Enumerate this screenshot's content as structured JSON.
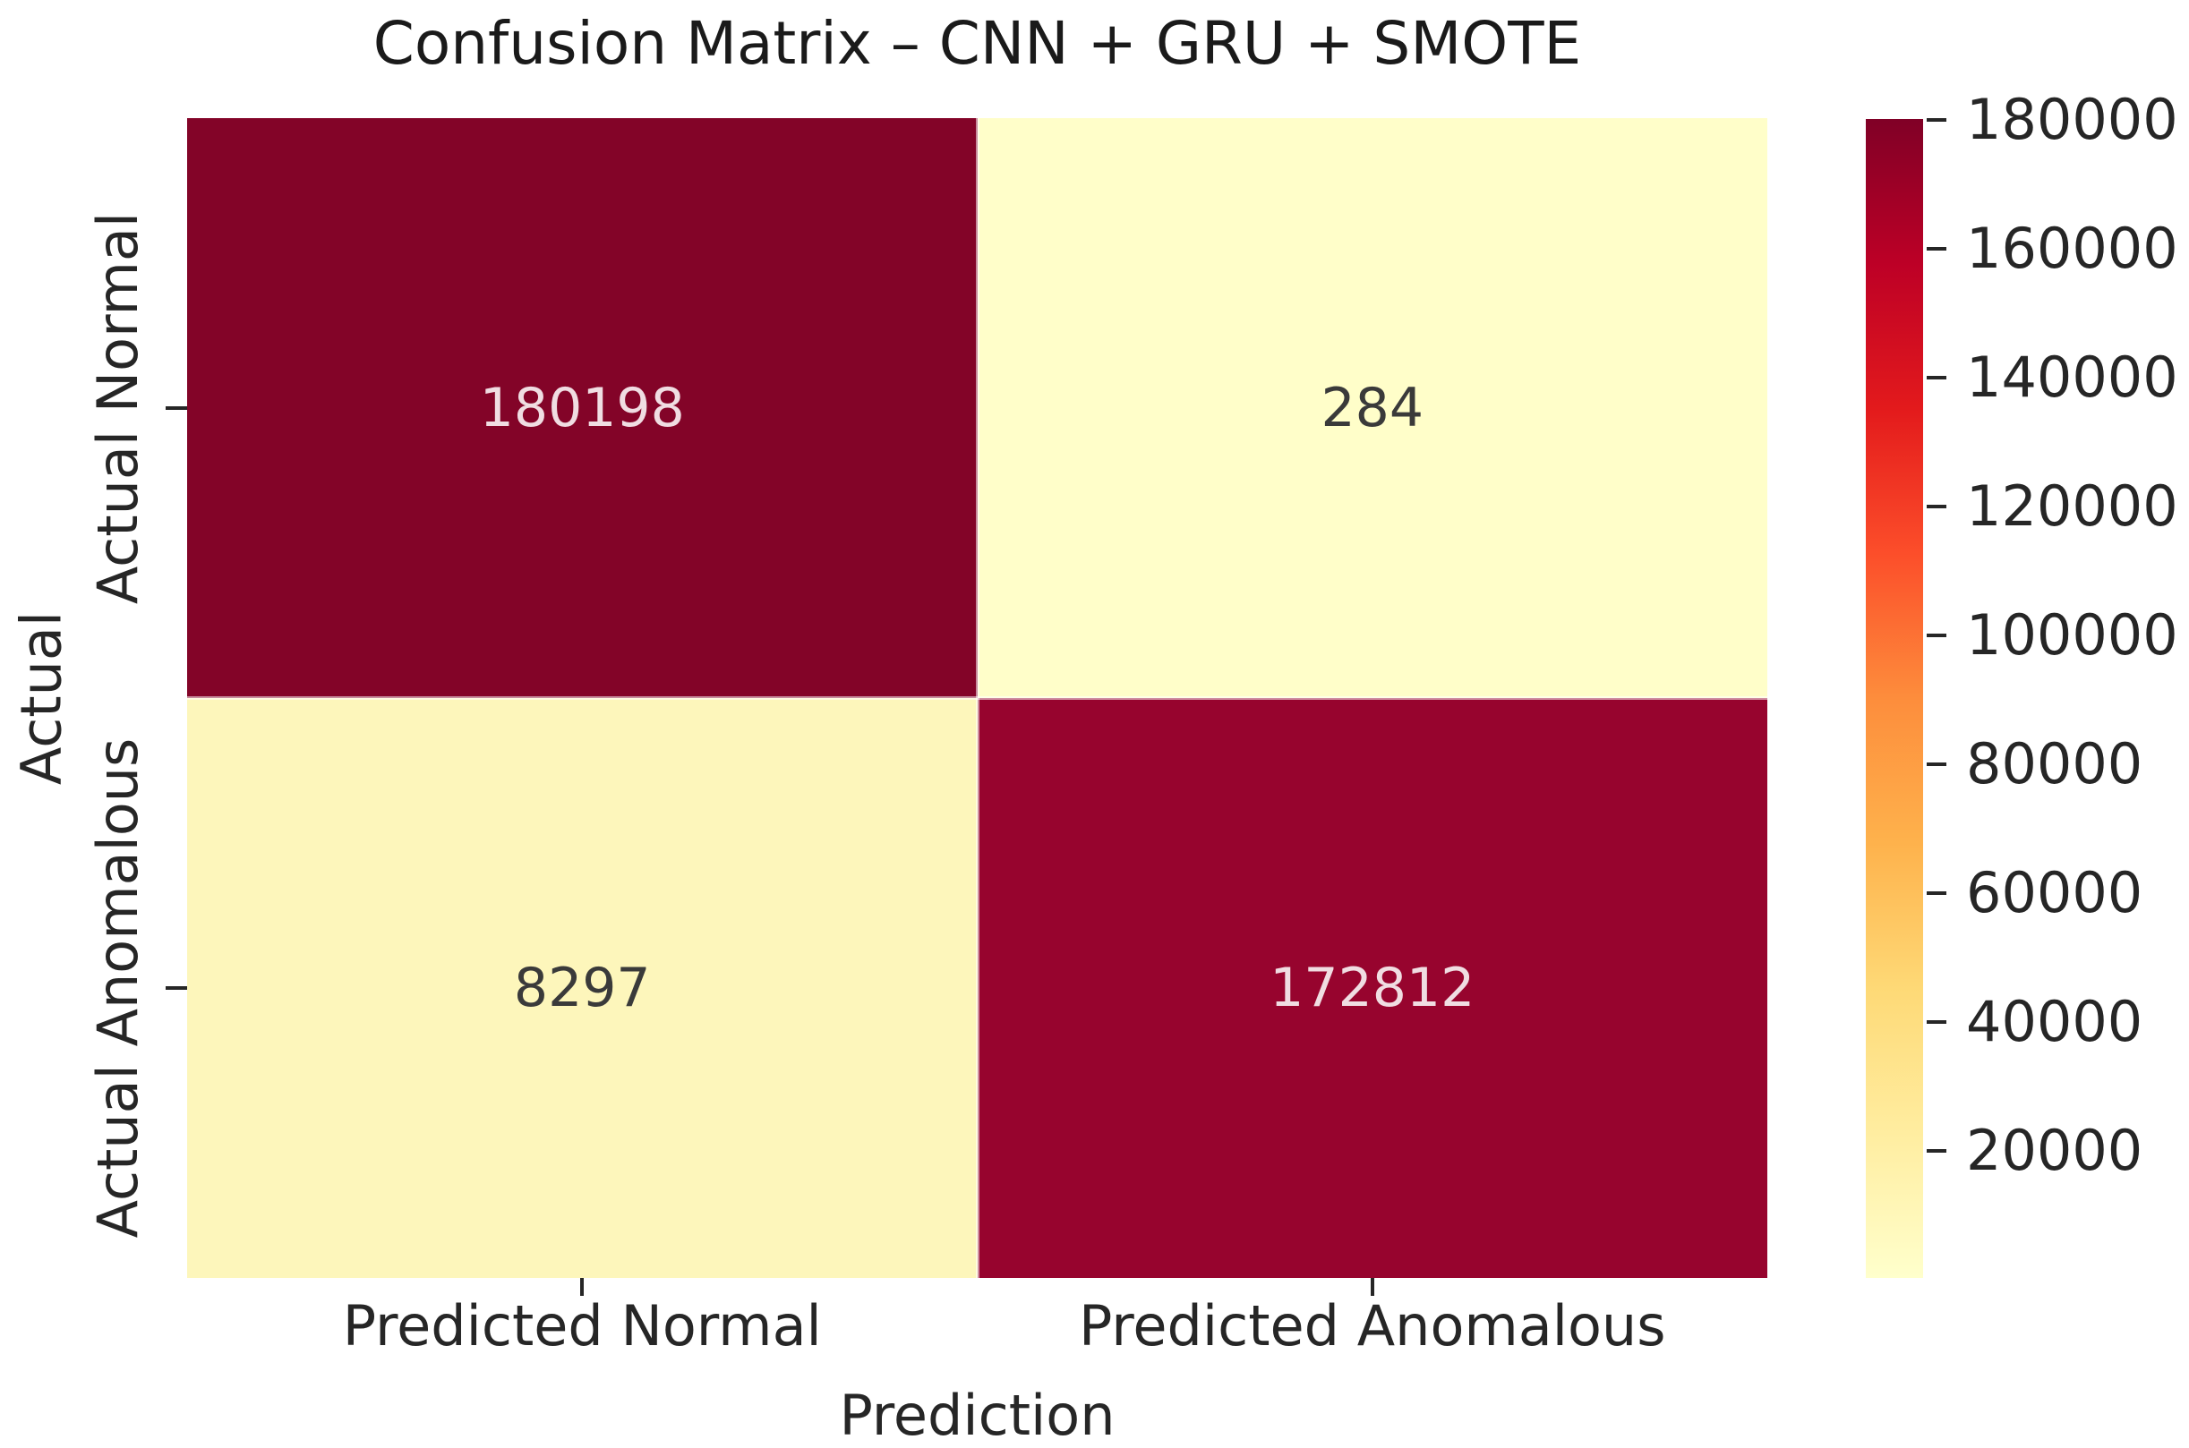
{
  "title": "Confusion Matrix – CNN + GRU + SMOTE",
  "chart_data": {
    "type": "heatmap",
    "title": "Confusion Matrix – CNN + GRU + SMOTE",
    "xlabel": "Prediction",
    "ylabel": "Actual",
    "x_ticklabels": [
      "Predicted Normal",
      "Predicted Anomalous"
    ],
    "y_ticklabels": [
      "Actual Normal",
      "Actual Anomalous"
    ],
    "matrix": [
      [
        180198,
        284
      ],
      [
        8297,
        172812
      ]
    ],
    "cells": [
      {
        "row": "Actual Normal",
        "col": "Predicted Normal",
        "value": "180198",
        "bg": "#830428",
        "text_color": "#f0dde2"
      },
      {
        "row": "Actual Normal",
        "col": "Predicted Anomalous",
        "value": "284",
        "bg": "#fffec9",
        "text_color": "#3a3a3a"
      },
      {
        "row": "Actual Anomalous",
        "col": "Predicted Normal",
        "value": "8297",
        "bg": "#fdf6bb",
        "text_color": "#3a3a3a"
      },
      {
        "row": "Actual Anomalous",
        "col": "Predicted Anomalous",
        "value": "172812",
        "bg": "#97042e",
        "text_color": "#f0dde2"
      }
    ],
    "colormap": {
      "name": "YlOrRd",
      "stops": [
        "#FFFFCC",
        "#FFEDA0",
        "#FED976",
        "#FEB24C",
        "#FD8D3C",
        "#FC4E2A",
        "#E31A1C",
        "#BD0026",
        "#800026"
      ]
    },
    "colorbar": {
      "min": 284,
      "max": 180198,
      "ticks": [
        20000,
        40000,
        60000,
        80000,
        100000,
        120000,
        140000,
        160000,
        180000
      ],
      "position": "right"
    },
    "grid": false,
    "legend_position": "none"
  }
}
